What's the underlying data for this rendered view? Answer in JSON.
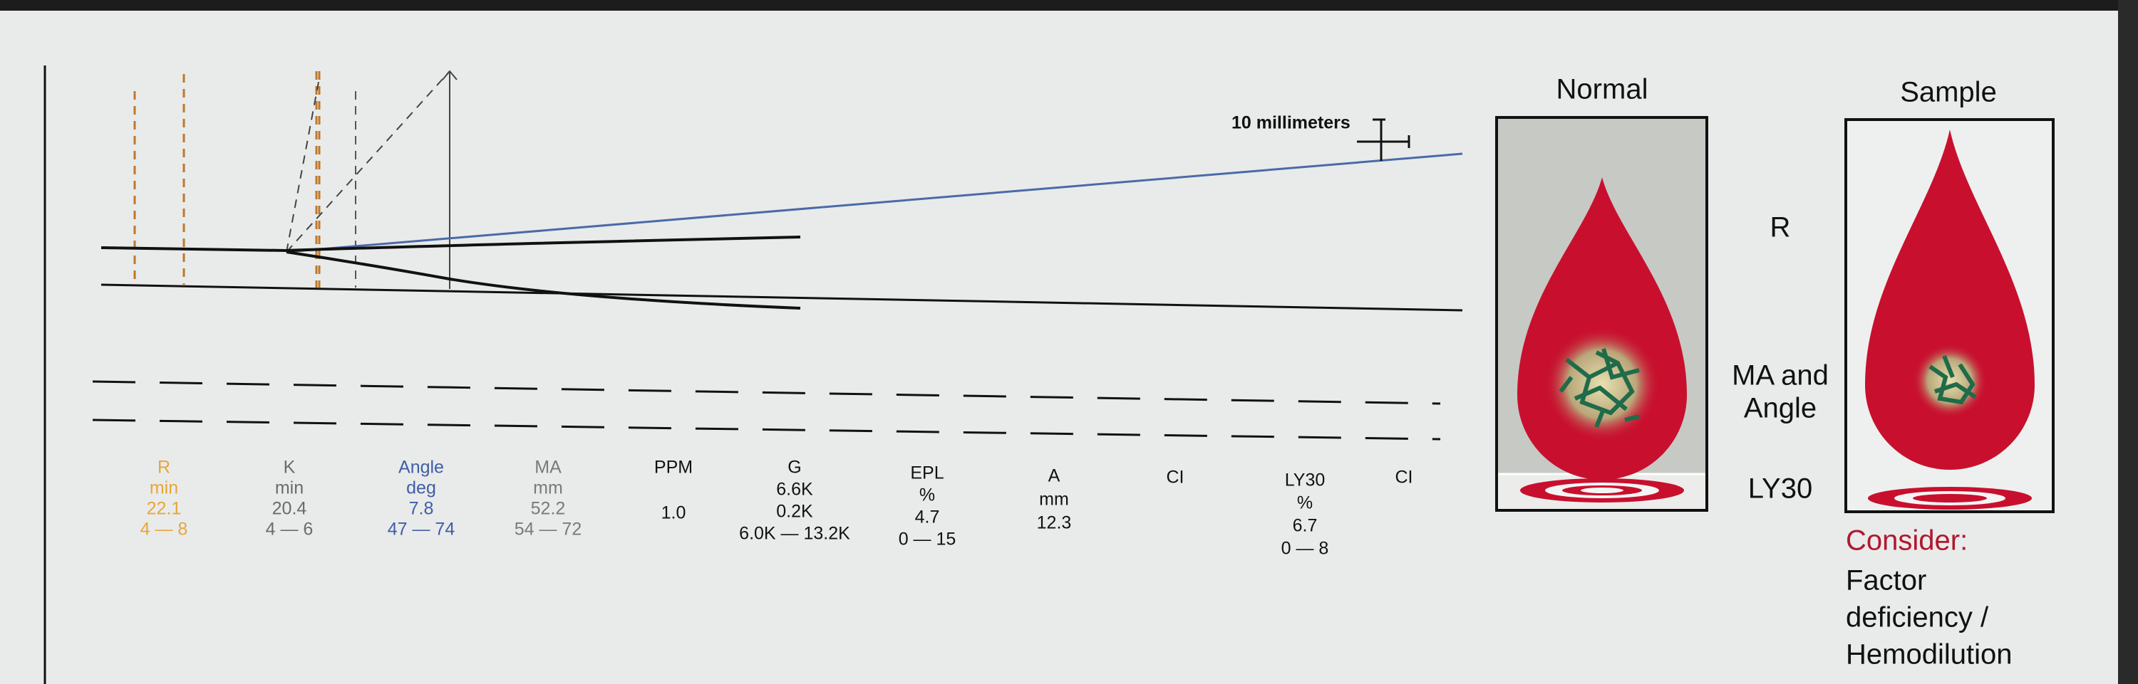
{
  "scale_label": "10 millimeters",
  "parameters": [
    {
      "lines": [
        "R",
        "min",
        "22.1",
        "4 — 8"
      ],
      "color": "#e8a53a"
    },
    {
      "lines": [
        "K",
        "min",
        "20.4",
        "4 — 6"
      ],
      "color": "#6b6b6b"
    },
    {
      "lines": [
        "Angle",
        "deg",
        "7.8",
        "47 — 74"
      ],
      "color": "#3f5ea8"
    },
    {
      "lines": [
        "MA",
        "mm",
        "52.2",
        "54 — 72"
      ],
      "color": "#7a7a7a"
    },
    {
      "lines": [
        "PPM",
        "1.0"
      ],
      "color": "#111111"
    },
    {
      "lines": [
        "G",
        "6.6K",
        "0.2K",
        "6.0K — 13.2K"
      ],
      "color": "#111111"
    },
    {
      "lines": [
        "EPL",
        "%",
        "4.7",
        "0 — 15"
      ],
      "color": "#111111"
    },
    {
      "lines": [
        "A",
        "mm",
        "12.3"
      ],
      "color": "#111111"
    },
    {
      "lines": [
        "CI"
      ],
      "color": "#111111"
    },
    {
      "lines": [
        "LY30",
        "%",
        "6.7",
        "0 — 8"
      ],
      "color": "#111111"
    },
    {
      "lines": [
        "CI"
      ],
      "color": "#111111"
    }
  ],
  "panels": {
    "normal": "Normal",
    "sample": "Sample"
  },
  "side_labels": {
    "r": "R",
    "ma_angle": [
      "MA and",
      "Angle"
    ],
    "ly30": "LY30"
  },
  "consider": {
    "heading": "Consider:",
    "lines": [
      "Factor",
      "deficiency /",
      "Hemodilution"
    ]
  }
}
